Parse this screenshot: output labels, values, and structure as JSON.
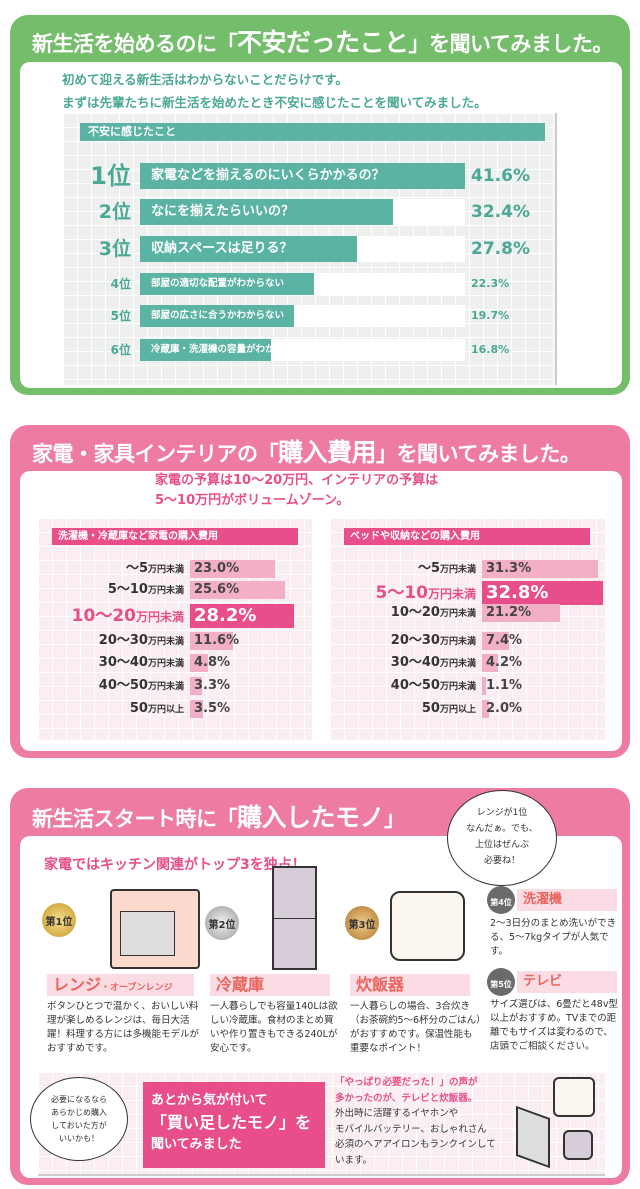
{
  "colors": {
    "green": "#74bd6a",
    "teal": "#5ab3a3",
    "pink": "#ee7ba2",
    "magenta": "#e84f8a",
    "light_pink": "#f3afc4"
  },
  "section1": {
    "title_pre": "新生活を始めるのに「",
    "title_em": "不安だったこと",
    "title_post": "」を聞いてみました。",
    "lead1": "初めて迎える新生活はわからないことだらけです。",
    "lead2": "まずは先輩たちに新生活を始めたとき不安に感じたことを聞いてみました。"
  },
  "section2": {
    "title_pre": "家電・家具インテリアの「",
    "title_em": "購入費用",
    "title_post": "」を聞いてみました。",
    "lead1": "家電の予算は10〜20万円、インテリアの予算は",
    "lead2": "5〜10万円がボリュームゾーン。"
  },
  "section3": {
    "title_pre": "新生活スタート時に「",
    "title_em": "購入したモノ",
    "title_post": "」",
    "bubble": [
      "レンジが1位",
      "なんだぁ。でも、",
      "上位はぜんぶ",
      "必要ね！"
    ],
    "lead": "家電ではキッチン関連がトップ3を独占！",
    "items": [
      {
        "medal": "第1位",
        "name": "レンジ",
        "sub": "・オーブンレンジ",
        "desc": "ボタンひとつで温かく、おいしい料理が楽しめるレンジは、毎日大活躍！料理する方には多機能モデルがおすすめです。"
      },
      {
        "medal": "第2位",
        "name": "冷蔵庫",
        "desc": "一人暮らしでも容量140Lは欲しい冷蔵庫。食材のまとめ買いや作り置きもできる240Lが安心です。"
      },
      {
        "medal": "第3位",
        "name": "炊飯器",
        "desc": "一人暮らしの場合、3合炊き（お茶碗約5〜6杯分のごはん）がおすすめです。保温性能も重要なポイント！"
      },
      {
        "medal": "第4位",
        "name": "洗濯機",
        "desc": "2〜3日分のまとめ洗いができる、5〜7kgタイプが人気です。"
      },
      {
        "medal": "第5位",
        "name": "テレビ",
        "desc": "サイズ選びは、6畳だと48v型以上がおすすめ。TVまでの距離でもサイズは変わるので、店頭でご相談ください。"
      }
    ],
    "bubble2": [
      "必要になるなら",
      "あらかじめ購入",
      "しておいた方が",
      "いいかも！"
    ],
    "callout": [
      "あとから気が付いて",
      "「買い足したモノ」を",
      "聞いてみました"
    ],
    "note_pink": [
      "「やっぱり必要だった！」の声が",
      "多かったのが、テレビと炊飯器。"
    ],
    "note": [
      "外出時に活躍するイヤホンや",
      "モバイルバッテリー、おしゃれさん",
      "必須のヘアアイロンもランクインして",
      "います。"
    ]
  },
  "chart_data": [
    {
      "type": "bar",
      "orientation": "horizontal",
      "title": "不安に感じたこと",
      "ranks": [
        "1位",
        "2位",
        "3位",
        "4位",
        "5位",
        "6位"
      ],
      "categories": [
        "家電などを揃えるのにいくらかかるの？",
        "なにを揃えたらいいの？",
        "収納スペースは足りる？",
        "部屋の適切な配置がわからない",
        "部屋の広さに合うかわからない",
        "冷蔵庫・洗濯機の容量がわからない"
      ],
      "values": [
        41.6,
        32.4,
        27.8,
        22.3,
        19.7,
        16.8
      ],
      "unit": "%",
      "labels": [
        "41.6%",
        "32.4%",
        "27.8%",
        "22.3%",
        "19.7%",
        "16.8%"
      ]
    },
    {
      "type": "bar",
      "orientation": "horizontal",
      "title": "洗濯機・冷蔵庫など家電の購入費用",
      "categories": [
        [
          "〜5",
          "万円未満"
        ],
        [
          "5〜10",
          "万円未満"
        ],
        [
          "10〜20",
          "万円未満"
        ],
        [
          "20〜30",
          "万円未満"
        ],
        [
          "30〜40",
          "万円未満"
        ],
        [
          "40〜50",
          "万円未満"
        ],
        [
          "50",
          "万円以上"
        ]
      ],
      "values": [
        23.0,
        25.6,
        28.2,
        11.6,
        4.8,
        3.3,
        3.5
      ],
      "unit": "%",
      "labels": [
        "23.0%",
        "25.6%",
        "28.2%",
        "11.6%",
        "4.8%",
        "3.3%",
        "3.5%"
      ],
      "highlight": 2
    },
    {
      "type": "bar",
      "orientation": "horizontal",
      "title": "ベッドや収納などの購入費用",
      "categories": [
        [
          "〜5",
          "万円未満"
        ],
        [
          "5〜10",
          "万円未満"
        ],
        [
          "10〜20",
          "万円未満"
        ],
        [
          "20〜30",
          "万円未満"
        ],
        [
          "30〜40",
          "万円未満"
        ],
        [
          "40〜50",
          "万円未満"
        ],
        [
          "50",
          "万円以上"
        ]
      ],
      "values": [
        31.3,
        32.8,
        21.2,
        7.4,
        4.2,
        1.1,
        2.0
      ],
      "unit": "%",
      "labels": [
        "31.3%",
        "32.8%",
        "21.2%",
        "7.4%",
        "4.2%",
        "1.1%",
        "2.0%"
      ],
      "highlight": 1
    }
  ]
}
